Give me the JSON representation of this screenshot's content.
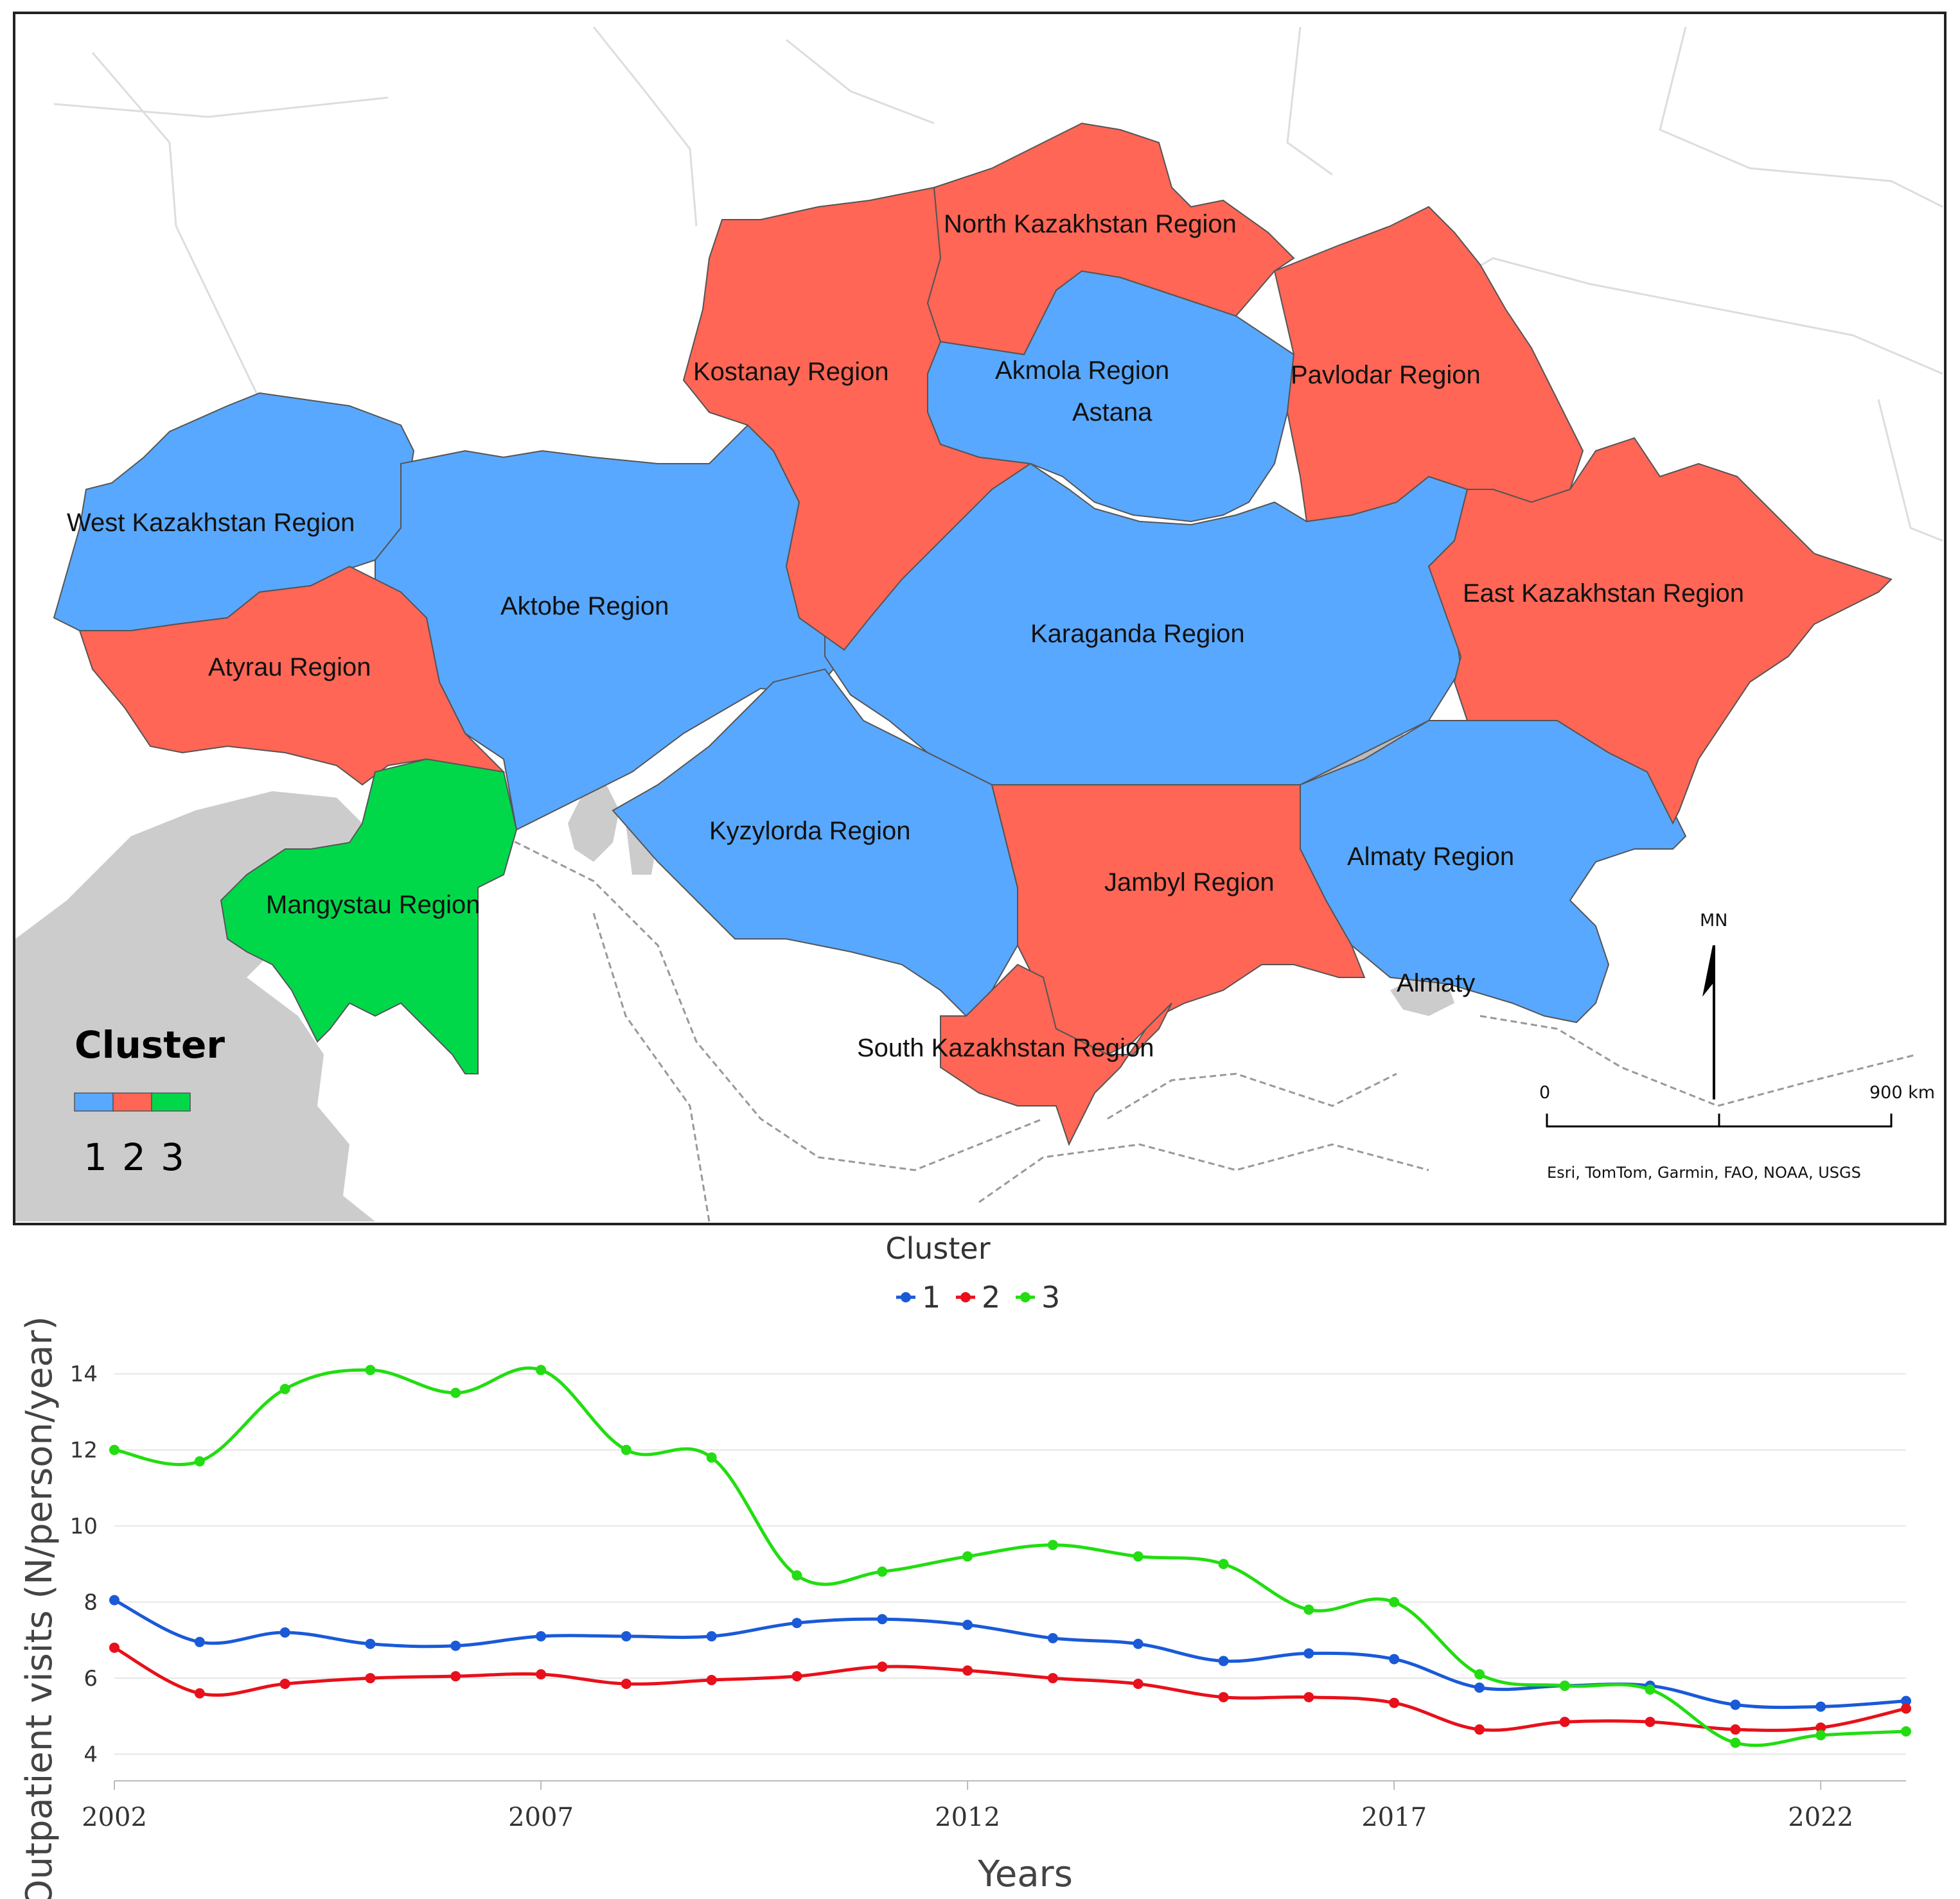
{
  "map": {
    "regions": [
      {
        "name": "West Kazakhstan Region",
        "cluster": 1
      },
      {
        "name": "Aktobe Region",
        "cluster": 1
      },
      {
        "name": "Atyrau Region",
        "cluster": 2
      },
      {
        "name": "Mangystau Region",
        "cluster": 3
      },
      {
        "name": "Kostanay Region",
        "cluster": 2
      },
      {
        "name": "North Kazakhstan Region",
        "cluster": 2
      },
      {
        "name": "Akmola Region",
        "cluster": 1
      },
      {
        "name": "Astana",
        "cluster": 1
      },
      {
        "name": "Pavlodar Region",
        "cluster": 2
      },
      {
        "name": "Karaganda Region",
        "cluster": 1
      },
      {
        "name": "East Kazakhstan Region",
        "cluster": 2
      },
      {
        "name": "Kyzylorda Region",
        "cluster": 1
      },
      {
        "name": "Jambyl Region",
        "cluster": 2
      },
      {
        "name": "Almaty Region",
        "cluster": 1
      },
      {
        "name": "Almaty",
        "cluster": 1
      },
      {
        "name": "South Kazakhstan Region",
        "cluster": 2
      }
    ],
    "legend": {
      "title": "Cluster",
      "items": [
        {
          "label": "1",
          "color": "#58a8ff"
        },
        {
          "label": "2",
          "color": "#ff6655"
        },
        {
          "label": "3",
          "color": "#00d84a"
        }
      ]
    },
    "north_arrow": "MN",
    "scale_bar": {
      "start": "0",
      "end": "900 km"
    },
    "attribution": "Esri, TomTom, Garmin, FAO, NOAA, USGS"
  },
  "chart_data": {
    "type": "line",
    "legend_title": "Cluster",
    "xlabel": "Years",
    "ylabel": "Outpatient visits (N/person/year)",
    "x": [
      2002,
      2003,
      2004,
      2005,
      2006,
      2007,
      2008,
      2009,
      2010,
      2011,
      2012,
      2013,
      2014,
      2015,
      2016,
      2017,
      2018,
      2019,
      2020,
      2021,
      2022,
      2023
    ],
    "xticks": [
      2002,
      2007,
      2012,
      2017,
      2022
    ],
    "yticks": [
      4,
      6,
      8,
      10,
      12,
      14
    ],
    "xlim": [
      2002,
      2023
    ],
    "ylim": [
      3.3,
      15
    ],
    "grid": "horizontal",
    "legend_position": "top-center",
    "series": [
      {
        "name": "1",
        "color": "#1a5ad8",
        "values": [
          8.05,
          6.95,
          7.2,
          6.9,
          6.85,
          7.1,
          7.1,
          7.1,
          7.45,
          7.55,
          7.4,
          7.05,
          6.9,
          6.45,
          6.65,
          6.5,
          5.75,
          5.8,
          5.8,
          5.3,
          5.25,
          5.4
        ]
      },
      {
        "name": "2",
        "color": "#e8101a",
        "values": [
          6.8,
          5.6,
          5.85,
          6.0,
          6.05,
          6.1,
          5.85,
          5.95,
          6.05,
          6.3,
          6.2,
          6.0,
          5.85,
          5.5,
          5.5,
          5.35,
          4.65,
          4.85,
          4.85,
          4.65,
          4.7,
          5.2
        ]
      },
      {
        "name": "3",
        "color": "#22dd11",
        "values": [
          12.0,
          11.7,
          13.6,
          14.1,
          13.5,
          14.1,
          12.0,
          11.8,
          8.7,
          8.8,
          9.2,
          9.5,
          9.2,
          9.0,
          7.8,
          8.0,
          6.1,
          5.8,
          5.7,
          4.3,
          4.5,
          4.6
        ]
      }
    ]
  }
}
